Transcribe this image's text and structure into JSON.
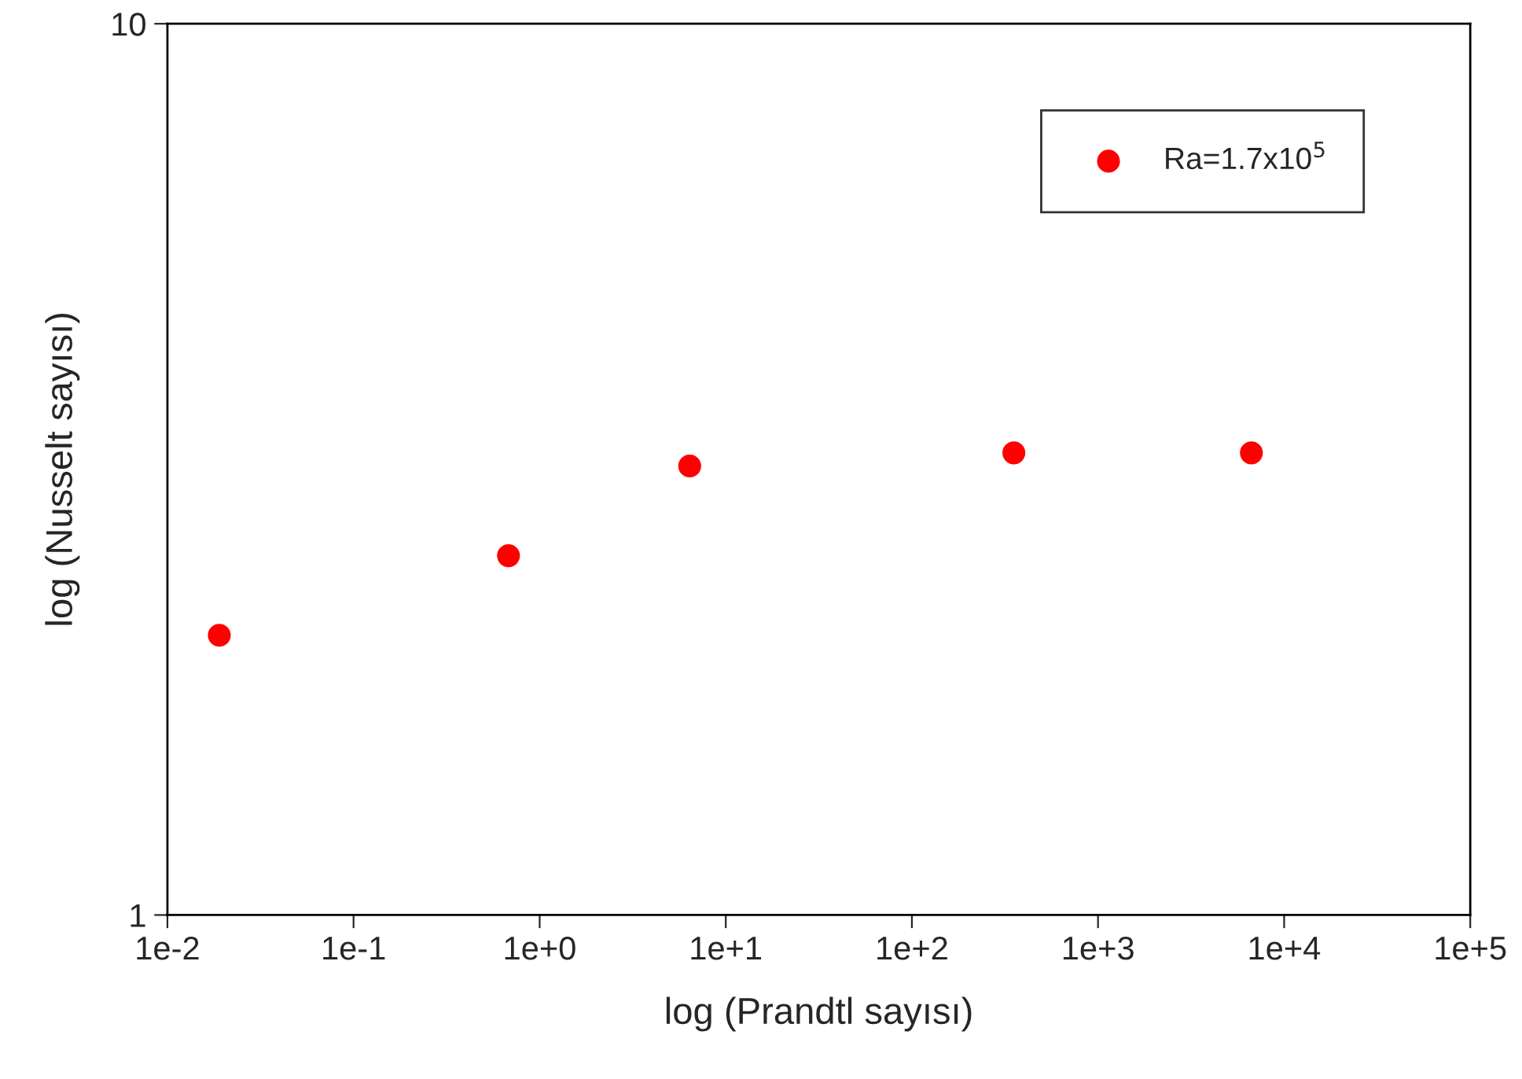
{
  "chart_data": {
    "type": "scatter",
    "xlabel": "log (Prandtl sayısı)",
    "ylabel": "log (Nusselt sayısı)",
    "log": "xy",
    "series": [
      {
        "name": "Ra=1.7x10$^{5}$",
        "color": "#ff0000",
        "x": [
          0.019,
          0.68,
          6.4,
          353,
          6670
        ],
        "values": [
          2.06,
          2.53,
          3.19,
          3.3,
          3.3
        ]
      }
    ],
    "xlim": [
      0.01,
      100000
    ],
    "ylim": [
      1,
      10
    ],
    "xticks": [
      {
        "value": 0.01,
        "label": "1e-2"
      },
      {
        "value": 0.1,
        "label": "1e-1"
      },
      {
        "value": 1,
        "label": "1e+0"
      },
      {
        "value": 10,
        "label": "1e+1"
      },
      {
        "value": 100,
        "label": "1e+2"
      },
      {
        "value": 1000,
        "label": "1e+3"
      },
      {
        "value": 10000,
        "label": "1e+4"
      },
      {
        "value": 100000,
        "label": "1e+5"
      }
    ],
    "yticks": [
      1,
      10
    ],
    "grid": false,
    "legend": "top right",
    "marker": "circle"
  }
}
